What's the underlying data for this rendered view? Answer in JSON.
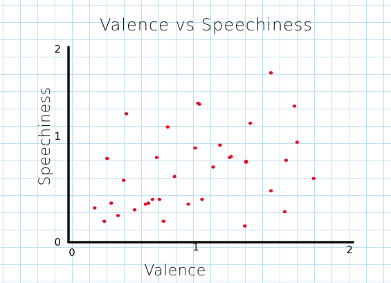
{
  "chart_data": {
    "type": "scatter",
    "title": "Valence vs Speechiness",
    "xlabel": "Valence",
    "ylabel": "Speechiness",
    "xlim": [
      0,
      2
    ],
    "ylim": [
      0,
      2
    ],
    "x_ticks": [
      "0",
      "1",
      "2"
    ],
    "y_ticks": [
      "0",
      "1",
      "2"
    ],
    "grid": true,
    "point_color": "#e0152d",
    "points": [
      {
        "x": 0.19,
        "y": 0.36
      },
      {
        "x": 0.26,
        "y": 0.22
      },
      {
        "x": 0.28,
        "y": 0.88
      },
      {
        "x": 0.31,
        "y": 0.41
      },
      {
        "x": 0.36,
        "y": 0.28
      },
      {
        "x": 0.4,
        "y": 0.65
      },
      {
        "x": 0.42,
        "y": 1.35
      },
      {
        "x": 0.48,
        "y": 0.34
      },
      {
        "x": 0.56,
        "y": 0.4
      },
      {
        "x": 0.58,
        "y": 0.41
      },
      {
        "x": 0.61,
        "y": 0.45
      },
      {
        "x": 0.64,
        "y": 0.89
      },
      {
        "x": 0.66,
        "y": 0.45
      },
      {
        "x": 0.69,
        "y": 0.22
      },
      {
        "x": 0.72,
        "y": 1.21
      },
      {
        "x": 0.77,
        "y": 0.69
      },
      {
        "x": 0.87,
        "y": 0.4
      },
      {
        "x": 0.92,
        "y": 0.99
      },
      {
        "x": 0.94,
        "y": 1.46
      },
      {
        "x": 0.95,
        "y": 1.45
      },
      {
        "x": 0.97,
        "y": 0.45
      },
      {
        "x": 1.05,
        "y": 0.79
      },
      {
        "x": 1.1,
        "y": 1.02
      },
      {
        "x": 1.17,
        "y": 0.89
      },
      {
        "x": 1.18,
        "y": 0.9
      },
      {
        "x": 1.28,
        "y": 0.17
      },
      {
        "x": 1.29,
        "y": 0.84
      },
      {
        "x": 1.29,
        "y": 0.85
      },
      {
        "x": 1.32,
        "y": 1.25
      },
      {
        "x": 1.47,
        "y": 1.78
      },
      {
        "x": 1.47,
        "y": 0.54
      },
      {
        "x": 1.57,
        "y": 0.32
      },
      {
        "x": 1.58,
        "y": 0.86
      },
      {
        "x": 1.64,
        "y": 1.43
      },
      {
        "x": 1.66,
        "y": 1.05
      },
      {
        "x": 1.78,
        "y": 0.67
      }
    ]
  }
}
